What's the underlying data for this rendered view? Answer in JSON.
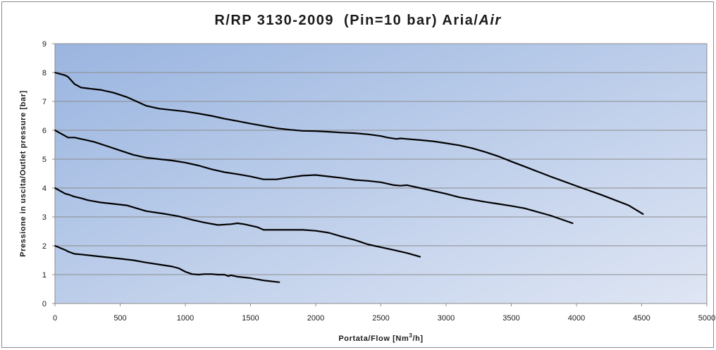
{
  "chart_data": {
    "type": "line",
    "title": {
      "main": "R/RP 3130-2009  (Pin=10 bar) Aria/",
      "italic": "Air"
    },
    "xlabel": {
      "prefix": "Portata/Flow [Nm",
      "sup": "3",
      "suffix": "/h]"
    },
    "ylabel": "Pressione in uscita/Outlet pressure [bar]",
    "xlim": [
      0,
      5000
    ],
    "ylim": [
      0,
      9
    ],
    "x_ticks": [
      "0",
      "500",
      "1000",
      "1500",
      "2000",
      "2500",
      "3000",
      "3500",
      "4000",
      "4500",
      "5000"
    ],
    "y_ticks": [
      "0",
      "1",
      "2",
      "3",
      "4",
      "5",
      "6",
      "7",
      "8",
      "9"
    ],
    "grid": "horizontal",
    "legend": "none",
    "colors": {
      "plot_gradient_start": "#9ab5e0",
      "plot_gradient_end": "#dfe6f4",
      "line": "#000000",
      "grid": "#8c8c8c"
    },
    "series": [
      {
        "x": [
          0,
          80,
          100,
          150,
          200,
          250,
          350,
          450,
          550,
          600,
          700,
          800,
          900,
          1000,
          1100,
          1200,
          1300,
          1400,
          1500,
          1600,
          1700,
          1800,
          1900,
          2000,
          2100,
          2200,
          2300,
          2400,
          2500,
          2550,
          2620,
          2650,
          2700,
          2800,
          2900,
          3000,
          3100,
          3200,
          3300,
          3400,
          3500,
          3600,
          3800,
          4000,
          4200,
          4400,
          4510
        ],
        "y": [
          8.0,
          7.9,
          7.85,
          7.6,
          7.48,
          7.45,
          7.4,
          7.3,
          7.15,
          7.05,
          6.85,
          6.75,
          6.7,
          6.65,
          6.58,
          6.5,
          6.4,
          6.32,
          6.23,
          6.15,
          6.07,
          6.02,
          5.98,
          5.97,
          5.95,
          5.92,
          5.9,
          5.86,
          5.8,
          5.75,
          5.7,
          5.72,
          5.7,
          5.66,
          5.62,
          5.55,
          5.48,
          5.38,
          5.25,
          5.1,
          4.92,
          4.75,
          4.4,
          4.07,
          3.75,
          3.4,
          3.1
        ]
      },
      {
        "x": [
          0,
          80,
          100,
          150,
          200,
          300,
          400,
          500,
          600,
          700,
          800,
          900,
          1000,
          1100,
          1200,
          1300,
          1400,
          1500,
          1600,
          1700,
          1800,
          1900,
          2000,
          2100,
          2200,
          2300,
          2400,
          2500,
          2600,
          2650,
          2700,
          2800,
          2900,
          3000,
          3100,
          3200,
          3300,
          3400,
          3500,
          3600,
          3800,
          3970
        ],
        "y": [
          6.0,
          5.8,
          5.75,
          5.75,
          5.7,
          5.6,
          5.45,
          5.3,
          5.15,
          5.05,
          5.0,
          4.95,
          4.88,
          4.78,
          4.65,
          4.55,
          4.48,
          4.4,
          4.3,
          4.3,
          4.37,
          4.43,
          4.45,
          4.4,
          4.35,
          4.28,
          4.25,
          4.2,
          4.1,
          4.08,
          4.1,
          4.0,
          3.9,
          3.8,
          3.68,
          3.6,
          3.52,
          3.45,
          3.38,
          3.3,
          3.05,
          2.78
        ]
      },
      {
        "x": [
          0,
          80,
          100,
          150,
          200,
          250,
          350,
          450,
          550,
          700,
          850,
          950,
          1050,
          1150,
          1250,
          1350,
          1400,
          1450,
          1550,
          1600,
          1700,
          1800,
          1900,
          2000,
          2100,
          2200,
          2300,
          2400,
          2500,
          2600,
          2700,
          2800
        ],
        "y": [
          4.0,
          3.8,
          3.78,
          3.7,
          3.65,
          3.58,
          3.5,
          3.45,
          3.4,
          3.2,
          3.1,
          3.02,
          2.9,
          2.8,
          2.72,
          2.75,
          2.78,
          2.75,
          2.65,
          2.55,
          2.55,
          2.55,
          2.55,
          2.52,
          2.45,
          2.32,
          2.2,
          2.05,
          1.95,
          1.85,
          1.75,
          1.62
        ]
      },
      {
        "x": [
          0,
          80,
          100,
          150,
          200,
          300,
          400,
          500,
          600,
          700,
          800,
          900,
          950,
          1000,
          1050,
          1100,
          1150,
          1200,
          1250,
          1300,
          1330,
          1350,
          1400,
          1500,
          1600,
          1700,
          1720
        ],
        "y": [
          2.0,
          1.85,
          1.8,
          1.72,
          1.7,
          1.65,
          1.6,
          1.55,
          1.5,
          1.42,
          1.35,
          1.28,
          1.22,
          1.1,
          1.02,
          1.0,
          1.02,
          1.02,
          1.0,
          1.0,
          0.95,
          0.98,
          0.93,
          0.88,
          0.8,
          0.75,
          0.74
        ]
      }
    ]
  }
}
